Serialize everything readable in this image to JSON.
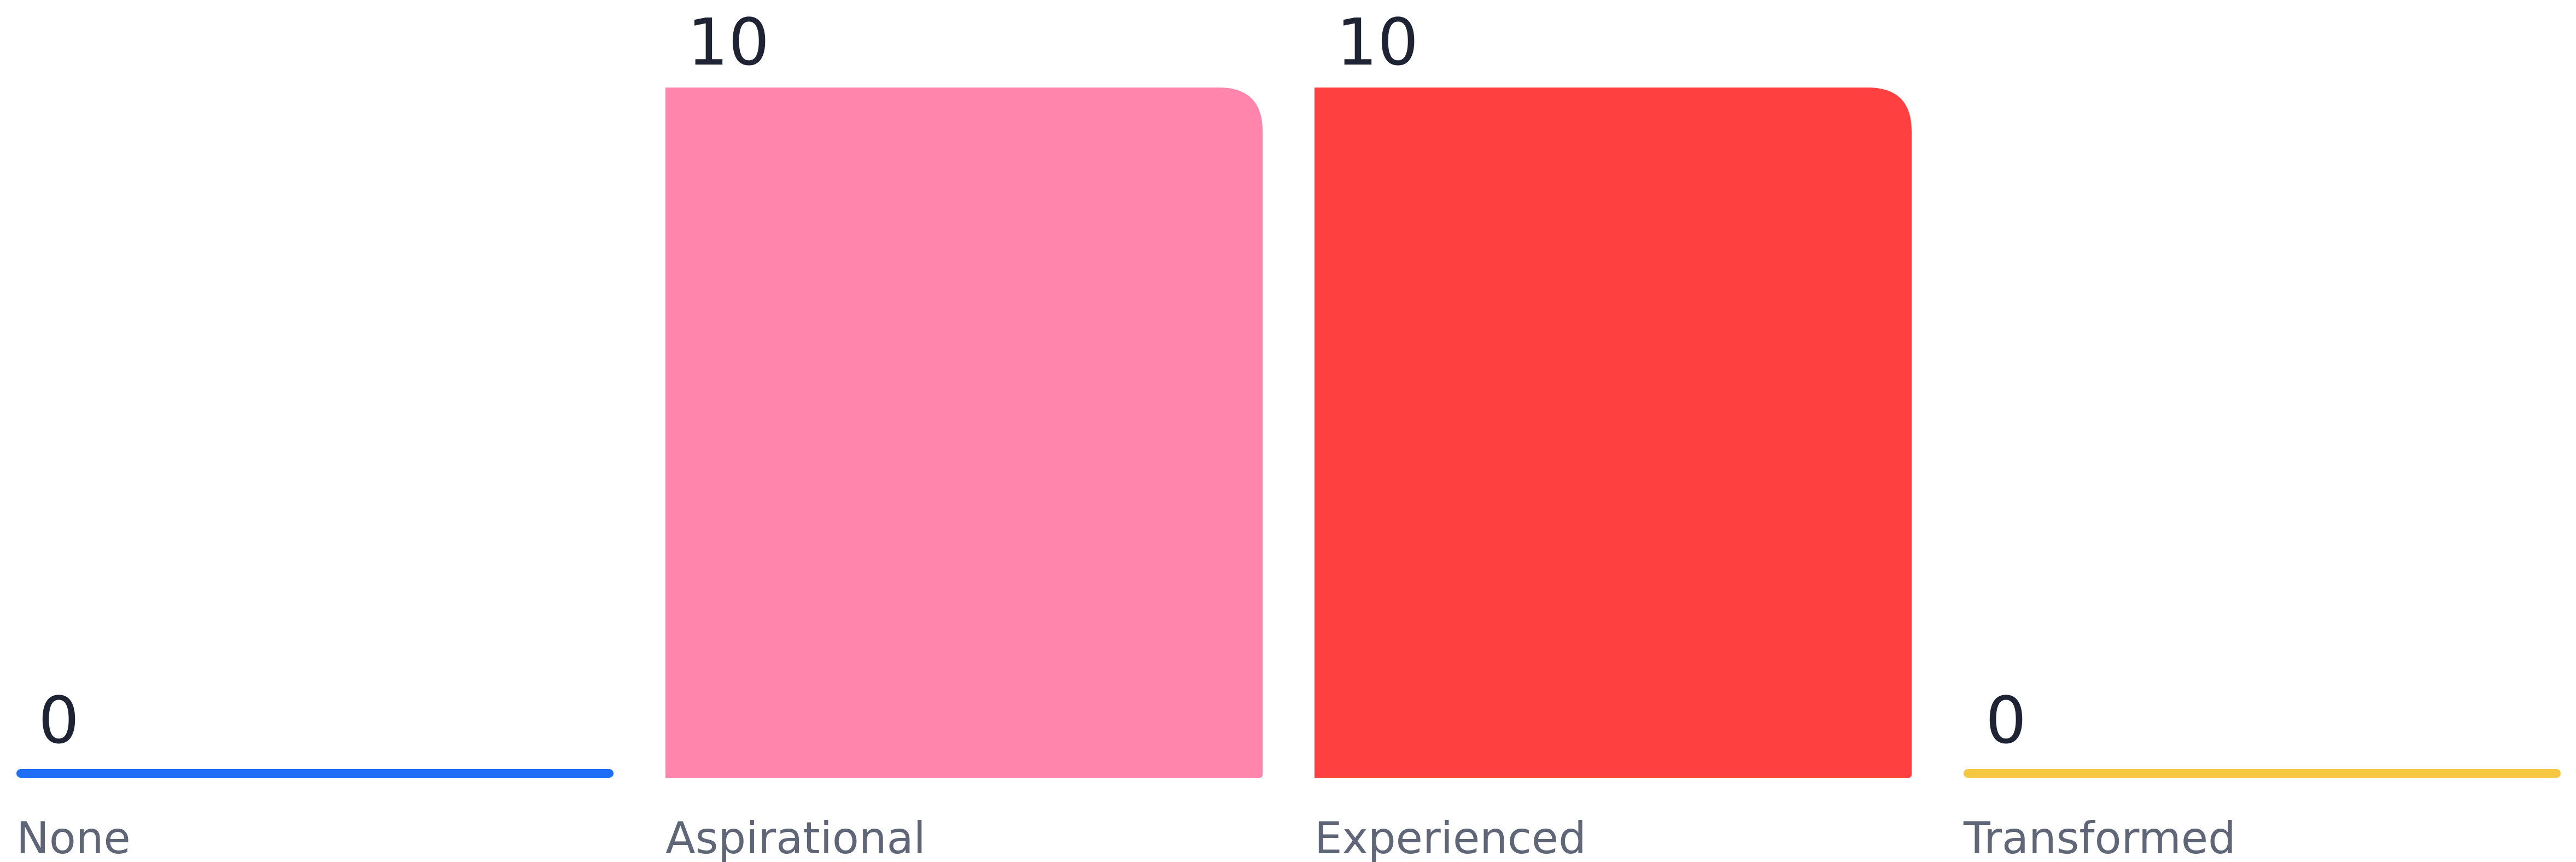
{
  "chart_data": {
    "type": "bar",
    "categories": [
      "None",
      "Aspirational",
      "Experienced",
      "Transformed"
    ],
    "values": [
      0,
      10,
      10,
      0
    ],
    "value_labels": [
      "0",
      "10",
      "10",
      "0"
    ],
    "colors": [
      "#1f6ef5",
      "#ff85ad",
      "#ff4040",
      "#f5c743"
    ],
    "ylim": [
      0,
      10
    ],
    "grid": false,
    "legend": "none",
    "title": "",
    "xlabel": "",
    "ylabel": ""
  },
  "colors": {
    "value_text": "#1e2433",
    "category_text": "#5f6677",
    "background": "#ffffff"
  }
}
